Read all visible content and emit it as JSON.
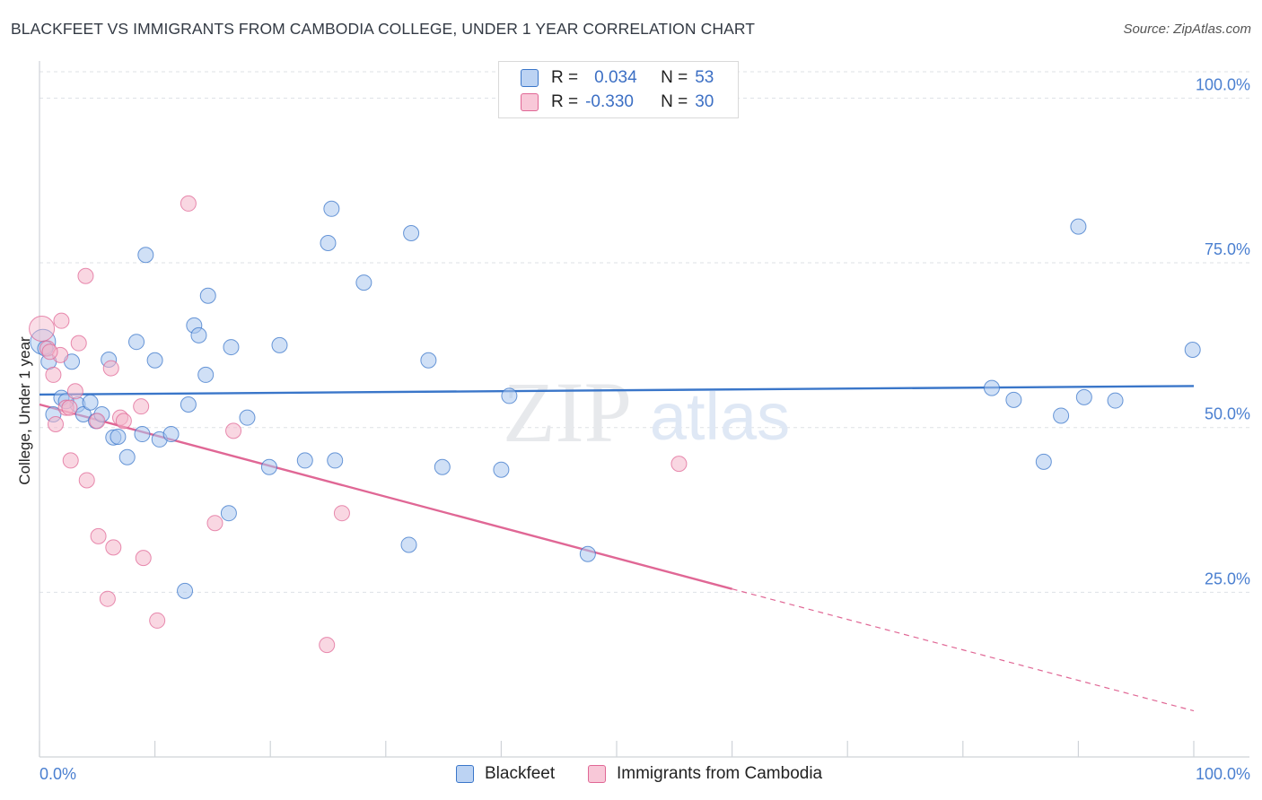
{
  "title": "BLACKFEET VS IMMIGRANTS FROM CAMBODIA COLLEGE, UNDER 1 YEAR CORRELATION CHART",
  "source": "Source: ZipAtlas.com",
  "colors": {
    "blue": "#3a76c9",
    "blue_fill": "#a9c6ee",
    "pink": "#e06795",
    "pink_fill": "#f4b6ca",
    "grid": "#dde1e6",
    "tick_label": "#4a7fd0"
  },
  "legend": {
    "series1": {
      "r_label": "R =",
      "r_value": "0.034",
      "n_label": "N =",
      "n_value": "53"
    },
    "series2": {
      "r_label": "R =",
      "r_value": "-0.330",
      "n_label": "N =",
      "n_value": "30"
    }
  },
  "bottom_legend": {
    "series1": "Blackfeet",
    "series2": "Immigrants from Cambodia"
  },
  "watermark": {
    "zip": "ZIP",
    "atlas": "atlas"
  },
  "chart_data": {
    "type": "scatter",
    "xlabel": "",
    "ylabel": "College, Under 1 year",
    "xlim": [
      0,
      100
    ],
    "ylim": [
      0,
      104
    ],
    "x_tick_labels": {
      "left": "0.0%",
      "right": "100.0%"
    },
    "y_ticks": [
      {
        "value": 25,
        "label": "25.0%"
      },
      {
        "value": 50,
        "label": "50.0%"
      },
      {
        "value": 75,
        "label": "75.0%"
      },
      {
        "value": 100,
        "label": "100.0%"
      }
    ],
    "series": [
      {
        "name": "Blackfeet",
        "color": "#3a76c9",
        "trend": {
          "x0": 0,
          "y0": 55.0,
          "x1": 100,
          "y1": 56.3
        },
        "points": [
          [
            0.3,
            63.0
          ],
          [
            0.8,
            60.0
          ],
          [
            1.2,
            52.0
          ],
          [
            1.9,
            54.5
          ],
          [
            2.8,
            60.0
          ],
          [
            3.3,
            53.5
          ],
          [
            3.8,
            52.0
          ],
          [
            4.4,
            53.8
          ],
          [
            4.9,
            51.0
          ],
          [
            5.4,
            52.0
          ],
          [
            6.0,
            60.3
          ],
          [
            6.4,
            48.5
          ],
          [
            6.8,
            48.6
          ],
          [
            7.6,
            45.5
          ],
          [
            8.4,
            63.0
          ],
          [
            8.9,
            49.0
          ],
          [
            9.2,
            76.2
          ],
          [
            10.0,
            60.2
          ],
          [
            10.4,
            48.2
          ],
          [
            11.4,
            49.0
          ],
          [
            12.6,
            25.2
          ],
          [
            12.9,
            53.5
          ],
          [
            13.4,
            65.5
          ],
          [
            13.8,
            64.0
          ],
          [
            14.4,
            58.0
          ],
          [
            14.6,
            70.0
          ],
          [
            16.4,
            37.0
          ],
          [
            16.6,
            62.2
          ],
          [
            18.0,
            51.5
          ],
          [
            19.9,
            44.0
          ],
          [
            20.8,
            62.5
          ],
          [
            23.0,
            45.0
          ],
          [
            25.0,
            78.0
          ],
          [
            25.3,
            83.2
          ],
          [
            25.6,
            45.0
          ],
          [
            28.1,
            72.0
          ],
          [
            32.0,
            32.2
          ],
          [
            32.2,
            79.5
          ],
          [
            33.7,
            60.2
          ],
          [
            34.9,
            44.0
          ],
          [
            40.0,
            43.6
          ],
          [
            40.7,
            54.8
          ],
          [
            47.5,
            30.8
          ],
          [
            82.5,
            56.0
          ],
          [
            84.4,
            54.2
          ],
          [
            87.0,
            44.8
          ],
          [
            88.5,
            51.8
          ],
          [
            90.0,
            80.5
          ],
          [
            90.5,
            54.6
          ],
          [
            93.2,
            54.1
          ],
          [
            99.9,
            61.8
          ],
          [
            0.5,
            62.0
          ],
          [
            2.3,
            54.0
          ]
        ]
      },
      {
        "name": "Immigrants from Cambodia",
        "color": "#e06795",
        "trend": {
          "x0": 0,
          "y0": 53.5,
          "x1": 60,
          "y1": 25.5,
          "dash_x1": 100,
          "dash_y1": 7.0
        },
        "points": [
          [
            0.2,
            65.0
          ],
          [
            0.7,
            62.0
          ],
          [
            1.2,
            58.0
          ],
          [
            1.4,
            50.5
          ],
          [
            1.8,
            61.0
          ],
          [
            1.9,
            66.2
          ],
          [
            2.3,
            53.0
          ],
          [
            2.6,
            53.0
          ],
          [
            2.7,
            45.0
          ],
          [
            3.1,
            55.5
          ],
          [
            3.4,
            62.8
          ],
          [
            4.0,
            73.0
          ],
          [
            4.1,
            42.0
          ],
          [
            5.0,
            51.0
          ],
          [
            5.1,
            33.5
          ],
          [
            5.9,
            24.0
          ],
          [
            6.2,
            59.0
          ],
          [
            6.4,
            31.8
          ],
          [
            7.0,
            51.5
          ],
          [
            7.3,
            51.0
          ],
          [
            8.8,
            53.2
          ],
          [
            9.0,
            30.2
          ],
          [
            10.2,
            20.7
          ],
          [
            12.9,
            84.0
          ],
          [
            15.2,
            35.5
          ],
          [
            16.8,
            49.5
          ],
          [
            24.9,
            17.0
          ],
          [
            26.2,
            37.0
          ],
          [
            55.4,
            44.5
          ],
          [
            0.9,
            61.5
          ]
        ]
      }
    ]
  }
}
